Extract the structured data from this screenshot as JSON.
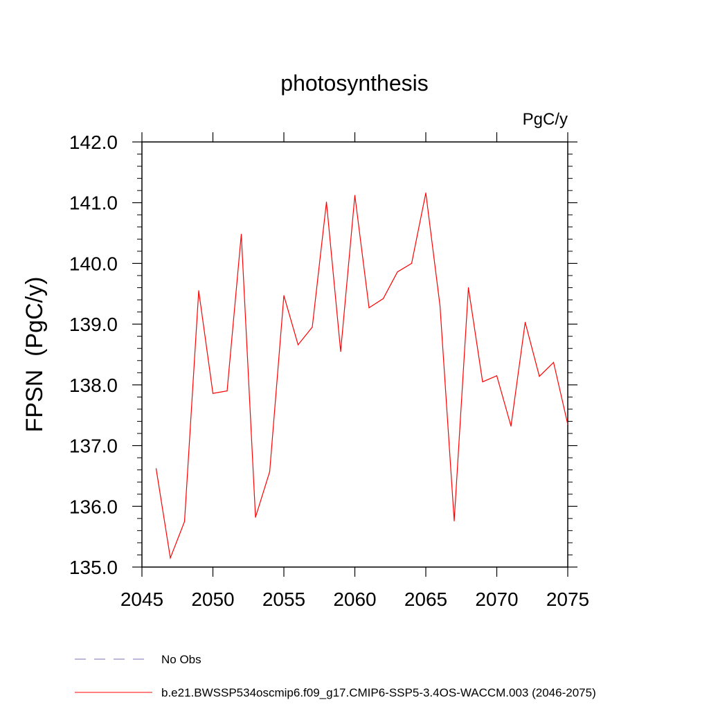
{
  "chart_data": {
    "type": "line",
    "title": "photosynthesis",
    "units_label": "PgC/y",
    "ylabel": "FPSN  (PgC/y)",
    "xlabel": "",
    "xlim": [
      2045,
      2075
    ],
    "ylim": [
      135.0,
      142.0
    ],
    "x_ticks": [
      2045,
      2050,
      2055,
      2060,
      2065,
      2070,
      2075
    ],
    "x_tick_labels": [
      "2045",
      "2050",
      "2055",
      "2060",
      "2065",
      "2070",
      "2075"
    ],
    "y_ticks": [
      135.0,
      136.0,
      137.0,
      138.0,
      139.0,
      140.0,
      141.0,
      142.0
    ],
    "y_tick_labels": [
      "135.0",
      "136.0",
      "137.0",
      "138.0",
      "139.0",
      "140.0",
      "141.0",
      "142.0"
    ],
    "grid": false,
    "legend_position": "bottom",
    "series": [
      {
        "name": "b.e21.BWSSP534oscmip6.f09_g17.CMIP6-SSP5-3.4OS-WACCM.003 (2046-2075)",
        "color": "#ff0000",
        "style": "solid",
        "x": [
          2046,
          2047,
          2048,
          2049,
          2050,
          2051,
          2052,
          2053,
          2054,
          2055,
          2056,
          2057,
          2058,
          2059,
          2060,
          2061,
          2062,
          2063,
          2064,
          2065,
          2066,
          2067,
          2068,
          2069,
          2070,
          2071,
          2072,
          2073,
          2074,
          2075
        ],
        "y": [
          136.62,
          135.15,
          135.75,
          139.55,
          137.86,
          137.9,
          140.48,
          135.82,
          136.57,
          139.47,
          138.66,
          138.95,
          141.01,
          138.55,
          141.12,
          139.27,
          139.42,
          139.86,
          140.0,
          141.16,
          139.3,
          135.76,
          139.6,
          138.05,
          138.15,
          137.32,
          139.03,
          138.14,
          138.37,
          137.35
        ]
      }
    ],
    "legend": [
      {
        "label": "No Obs",
        "color": "#7a6fbf",
        "style": "dashed"
      },
      {
        "label": "b.e21.BWSSP534oscmip6.f09_g17.CMIP6-SSP5-3.4OS-WACCM.003 (2046-2075)",
        "color": "#ff0000",
        "style": "solid"
      }
    ]
  }
}
